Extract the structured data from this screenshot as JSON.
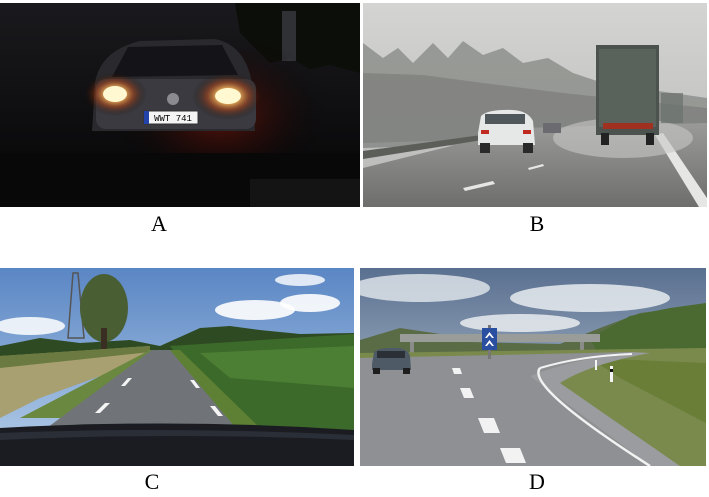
{
  "panels": [
    {
      "id": "A",
      "label": "A",
      "scene": "car-headlights-at-night"
    },
    {
      "id": "B",
      "label": "B",
      "scene": "foggy-highway-with-truck"
    },
    {
      "id": "C",
      "label": "C",
      "scene": "rural-road-sunny-day"
    },
    {
      "id": "D",
      "label": "D",
      "scene": "curved-road-with-chevron-sign"
    }
  ],
  "license_plate": "WWT 741"
}
